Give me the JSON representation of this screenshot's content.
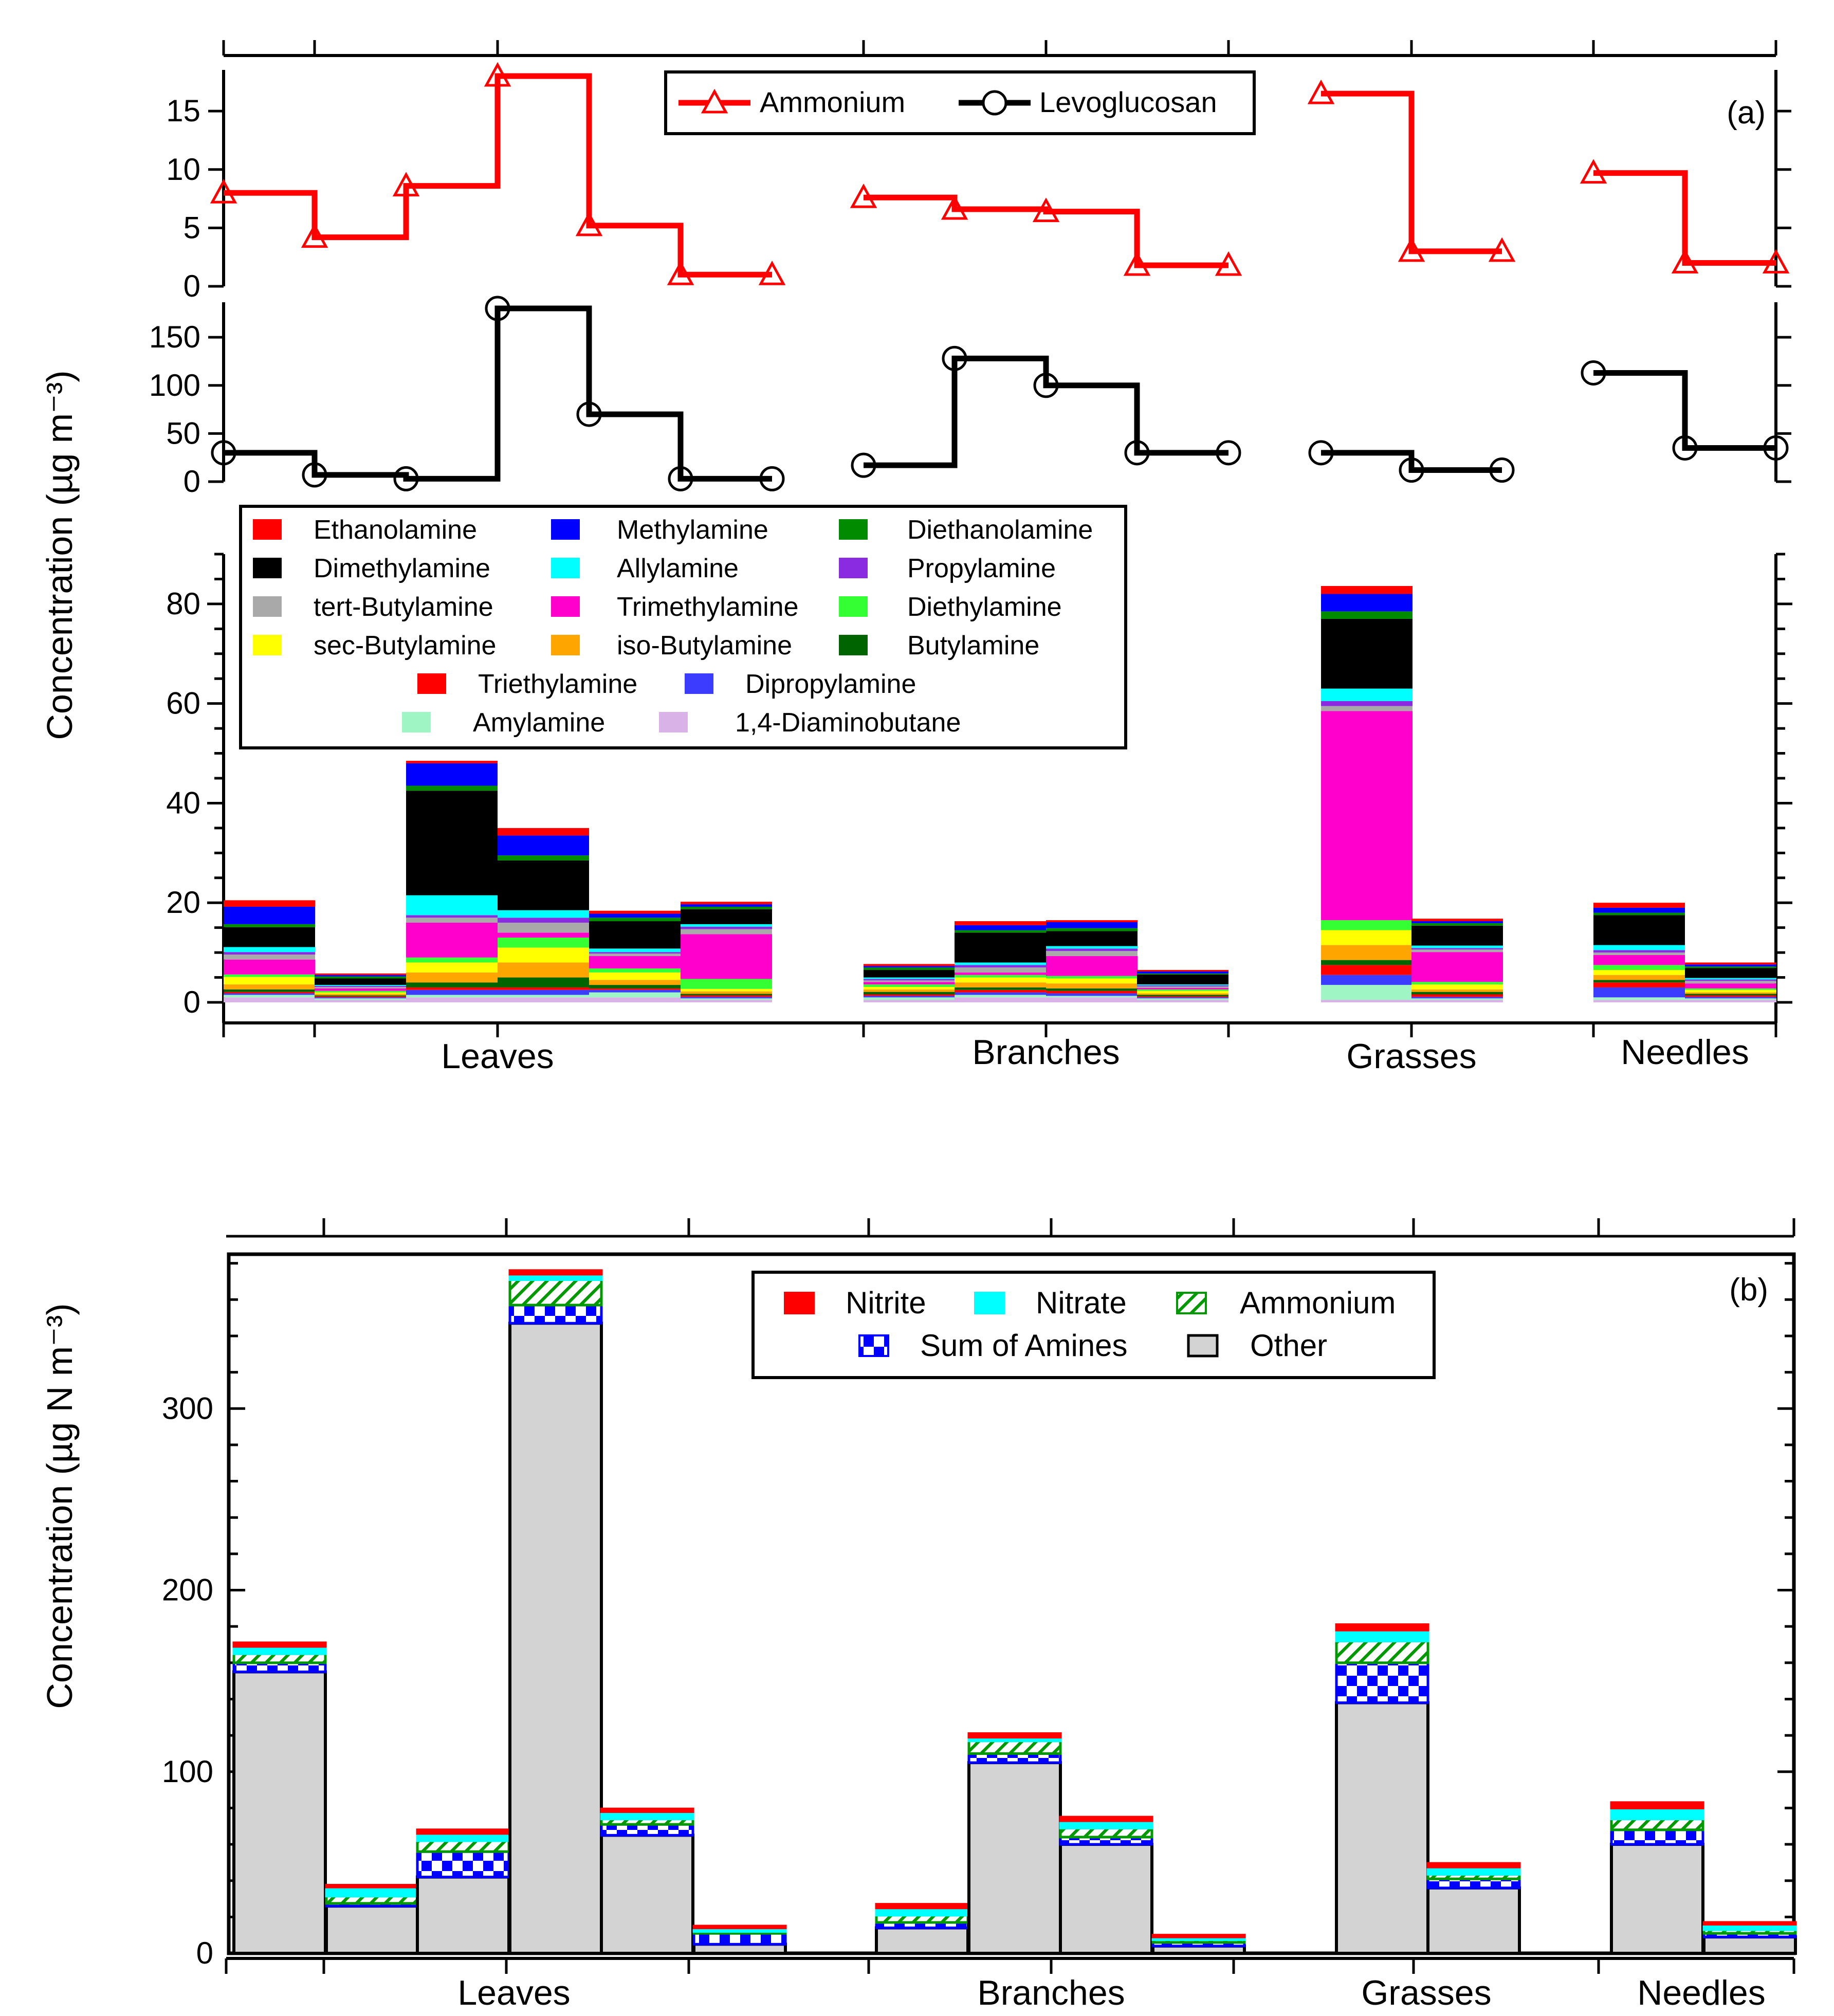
{
  "figure": {
    "ylabel_top": "Concentration (µg m⁻³)",
    "ylabel_bottom": "Concentration (µg N m⁻³)",
    "panel_a_tag": "(a)",
    "panel_b_tag": "(b)"
  },
  "chart_data": [
    {
      "id": "panel-a-top",
      "type": "line",
      "title": "",
      "legend": [
        "Ammonium",
        "Levoglucosan"
      ],
      "series": [
        {
          "name": "Ammonium",
          "color": "#ff0000",
          "marker": "triangle",
          "values": [
            8,
            4.2,
            8.6,
            18,
            5.2,
            1,
            null,
            7.6,
            6.6,
            6.4,
            1.8,
            null,
            16.5,
            3,
            null,
            9.7,
            2
          ]
        },
        {
          "name": "Levoglucosan",
          "color": "#000000",
          "marker": "circle",
          "values": [
            30,
            7,
            3,
            180,
            70,
            3,
            null,
            17,
            128,
            100,
            30,
            null,
            30,
            12,
            null,
            113,
            35
          ]
        }
      ],
      "ammonium_ylim": [
        0,
        18
      ],
      "ammonium_ticks": [
        0,
        5,
        10,
        15
      ],
      "levoglucosan_ylim": [
        0,
        180
      ],
      "levoglucosan_ticks": [
        0,
        50,
        100,
        150
      ],
      "xlabel": "",
      "ylabel": "Concentration (µg m⁻³)"
    },
    {
      "id": "panel-a-stacked",
      "type": "bar",
      "stacked": true,
      "groups": [
        "Leaves",
        "Branches",
        "Grasses",
        "Needles"
      ],
      "slot_counts": [
        6,
        4,
        2,
        2
      ],
      "ylim": [
        0,
        90
      ],
      "yticks": [
        0,
        20,
        40,
        60,
        80
      ],
      "legend_order": [
        "Ethanolamine",
        "Methylamine",
        "Diethanolamine",
        "Dimethylamine",
        "Allylamine",
        "Propylamine",
        "tert-Butylamine",
        "Trimethylamine",
        "Diethylamine",
        "sec-Butylamine",
        "iso-Butylamine",
        "Butylamine",
        "Triethylamine",
        "Dipropylamine",
        "Amylamine",
        "1,4-Diaminobutane"
      ],
      "series": [
        {
          "name": "1,4-Diaminobutane",
          "color": "#d9b3e8",
          "values": [
            1,
            0.5,
            1,
            1,
            1,
            0.5,
            0.5,
            1,
            1,
            0.5,
            0.5,
            0.5,
            0.5,
            0.5
          ]
        },
        {
          "name": "Amylamine",
          "color": "#9ff5c4",
          "values": [
            0.5,
            0.3,
            0.5,
            0.5,
            1,
            0.3,
            0.5,
            0.5,
            0.3,
            0.3,
            3,
            0.3,
            0.5,
            0.3
          ]
        },
        {
          "name": "Dipropylamine",
          "color": "#3c3cff",
          "values": [
            0.3,
            0.2,
            1,
            1,
            0.5,
            0.3,
            0.3,
            0.5,
            0.5,
            0.2,
            2,
            0.3,
            2,
            0.3
          ]
        },
        {
          "name": "Triethylamine",
          "color": "#ff0000",
          "values": [
            0.3,
            0.2,
            0.5,
            0.5,
            0.3,
            0.3,
            0.3,
            0.5,
            0.5,
            0.2,
            2,
            0.5,
            1,
            0.3
          ]
        },
        {
          "name": "Butylamine",
          "color": "#006400",
          "values": [
            0.5,
            0.2,
            1,
            2,
            0.7,
            0.3,
            0.5,
            0.5,
            0.5,
            0.3,
            1,
            0.5,
            0.5,
            0.3
          ]
        },
        {
          "name": "iso-Butylamine",
          "color": "#ffa500",
          "values": [
            1,
            0.3,
            2,
            3,
            1,
            0.5,
            0.5,
            1,
            1,
            0.3,
            3,
            0.5,
            1,
            0.3
          ]
        },
        {
          "name": "sec-Butylamine",
          "color": "#ffff00",
          "values": [
            1.5,
            0.3,
            2,
            3,
            1.5,
            0.5,
            0.5,
            1,
            1,
            0.5,
            3,
            1,
            1,
            0.5
          ]
        },
        {
          "name": "Diethylamine",
          "color": "#33ff33",
          "values": [
            0.5,
            0.3,
            1,
            2,
            0.8,
            2,
            0.5,
            0.5,
            0.5,
            0.3,
            2,
            0.5,
            1,
            0.3
          ]
        },
        {
          "name": "Trimethylamine",
          "color": "#ff00cc",
          "values": [
            3,
            0.5,
            7,
            1,
            2.5,
            9,
            0.5,
            0.5,
            4,
            0.3,
            42,
            6,
            2,
            1
          ]
        },
        {
          "name": "tert-Butylamine",
          "color": "#a9a9a9",
          "values": [
            1,
            0.3,
            1,
            2,
            0.5,
            1,
            0.3,
            1,
            1,
            0.3,
            1,
            0.5,
            0.5,
            0.5
          ]
        },
        {
          "name": "Propylamine",
          "color": "#8a2be2",
          "values": [
            0.5,
            0.2,
            0.5,
            1,
            0.3,
            0.5,
            0.3,
            0.5,
            0.5,
            0.2,
            1,
            0.3,
            0.5,
            0.3
          ]
        },
        {
          "name": "Allylamine",
          "color": "#00ffff",
          "values": [
            1,
            0.2,
            4,
            1.5,
            0.7,
            0.5,
            0.3,
            0.5,
            0.5,
            0.2,
            2.5,
            0.5,
            1,
            0.3
          ]
        },
        {
          "name": "Dimethylamine",
          "color": "#000000",
          "values": [
            4,
            1.3,
            21,
            10,
            5.5,
            3,
            1.5,
            6,
            3,
            2,
            14,
            4,
            6,
            2
          ]
        },
        {
          "name": "Diethanolamine",
          "color": "#008b00",
          "values": [
            0.6,
            0.4,
            1,
            1,
            0.7,
            0.5,
            0.5,
            0.5,
            0.6,
            0.2,
            1.5,
            0.5,
            0.5,
            0.3
          ]
        },
        {
          "name": "Methylamine",
          "color": "#0000ff",
          "values": [
            3.5,
            0.3,
            4.5,
            4,
            0.8,
            0.5,
            0.3,
            1,
            1.2,
            0.4,
            3.5,
            0.4,
            1,
            0.4
          ]
        },
        {
          "name": "Ethanolamine",
          "color": "#ff0000",
          "values": [
            1.3,
            0.3,
            0.5,
            1.5,
            0.6,
            0.5,
            0.4,
            0.8,
            0.4,
            0.3,
            1.6,
            0.5,
            1,
            0.4
          ]
        }
      ],
      "xlabel": "",
      "ylabel": "Concentration (µg m⁻³)"
    },
    {
      "id": "panel-b",
      "type": "bar",
      "stacked": true,
      "groups": [
        "Leaves",
        "Branches",
        "Grasses",
        "Needles"
      ],
      "slot_counts": [
        6,
        4,
        2,
        2
      ],
      "ylim": [
        0,
        385
      ],
      "yticks": [
        0,
        100,
        200,
        300
      ],
      "legend_order": [
        "Nitrite",
        "Nitrate",
        "Ammonium",
        "Sum of Amines",
        "Other"
      ],
      "series": [
        {
          "name": "Other",
          "color": "#d3d3d3",
          "pattern": "solid",
          "values": [
            155,
            26,
            42,
            347,
            65,
            5,
            14,
            105,
            60,
            4,
            138,
            36,
            60,
            9
          ]
        },
        {
          "name": "Sum of Amines",
          "color": "#0000ff",
          "pattern": "checker",
          "values": [
            5,
            1.5,
            14,
            10,
            6,
            6,
            3,
            5,
            4,
            2,
            22,
            5,
            8,
            2
          ]
        },
        {
          "name": "Ammonium",
          "color": "#009900",
          "pattern": "hatch",
          "values": [
            5,
            4,
            6,
            14,
            3,
            1,
            4,
            7,
            5,
            1.5,
            12,
            2.5,
            6,
            2
          ]
        },
        {
          "name": "Nitrate",
          "color": "#00ffff",
          "pattern": "solid",
          "values": [
            4,
            5,
            4,
            3,
            4,
            2,
            4,
            2,
            4,
            1.5,
            6,
            4,
            6,
            3
          ]
        },
        {
          "name": "Nitrite",
          "color": "#ff0000",
          "pattern": "solid",
          "values": [
            2,
            1,
            2,
            2,
            1.5,
            1,
            2,
            2,
            2,
            1,
            3,
            2,
            3,
            1
          ]
        }
      ],
      "xlabel": "",
      "ylabel": "Concentration (µg N m⁻³)"
    }
  ]
}
